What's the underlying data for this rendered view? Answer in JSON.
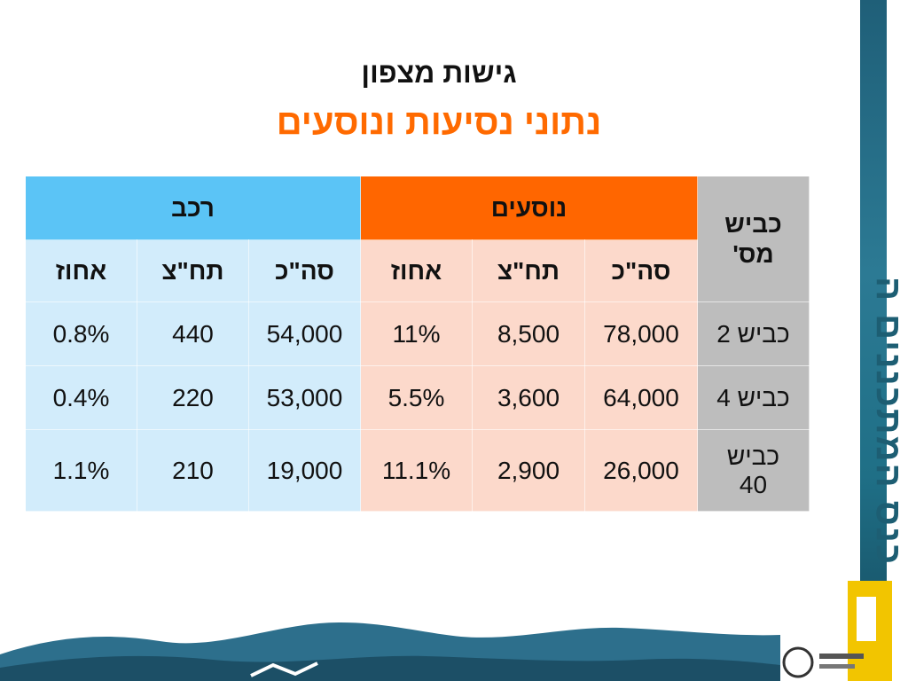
{
  "slide": {
    "title_line1": "גישות מצפון",
    "title_line2": "נתוני נסיעות ונוסעים",
    "side_text": "כנס המתכננים ה"
  },
  "table": {
    "road_header": "כביש\nמס'",
    "group_passengers": "נוסעים",
    "group_vehicles": "רכב",
    "sub_headers": [
      "סה\"כ",
      "תח\"צ",
      "אחוז",
      "סה\"כ",
      "תח\"צ",
      "אחוז"
    ],
    "rows": [
      {
        "road": "כביש 2",
        "cells": [
          "78,000",
          "8,500",
          "11%",
          "54,000",
          "440",
          "0.8%"
        ]
      },
      {
        "road": "כביש 4",
        "cells": [
          "64,000",
          "3,600",
          "5.5%",
          "53,000",
          "220",
          "0.4%"
        ]
      },
      {
        "road": "כביש 40",
        "cells": [
          "26,000",
          "2,900",
          "11.1%",
          "19,000",
          "210",
          "1.1%"
        ]
      }
    ]
  },
  "colors": {
    "title_orange": "#ff6a00",
    "passengers_header": "#ff6600",
    "vehicles_header": "#5bc4f6",
    "passengers_cell": "#fcd9cb",
    "vehicles_cell": "#d2ecfb",
    "road_column": "#bdbdbd"
  }
}
